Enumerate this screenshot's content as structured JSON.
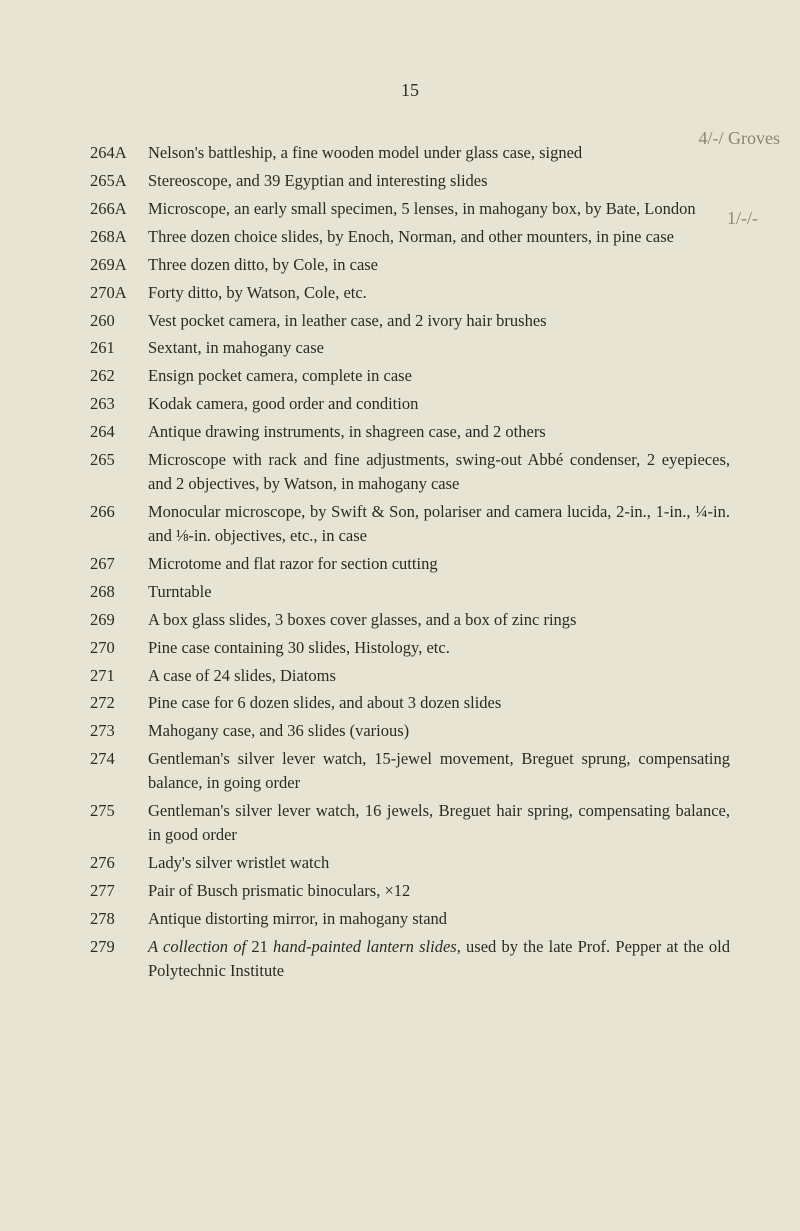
{
  "page_number": "15",
  "annotations": {
    "a1": "4/-/ Groves",
    "a2": "1/-/-"
  },
  "entries": [
    {
      "lot": "264A",
      "lines": [
        "Nelson's battleship, a fine wooden model under glass case, signed"
      ]
    },
    {
      "lot": "265A",
      "lines": [
        "Stereoscope, and 39 Egyptian and interesting slides"
      ]
    },
    {
      "lot": "266A",
      "lines": [
        "Microscope, an early small specimen, 5 lenses, in mahogany box, by Bate, London"
      ]
    },
    {
      "lot": "268A",
      "lines": [
        "Three dozen choice slides, by Enoch, Norman, and other mounters, in pine case"
      ]
    },
    {
      "lot": "269A",
      "lines": [
        "Three dozen ditto, by Cole, in case"
      ]
    },
    {
      "lot": "270A",
      "lines": [
        "Forty ditto, by Watson, Cole, etc."
      ]
    },
    {
      "lot": "260",
      "lines": [
        "Vest pocket camera, in leather case, and 2 ivory hair brushes"
      ]
    },
    {
      "lot": "261",
      "lines": [
        "Sextant, in mahogany case"
      ]
    },
    {
      "lot": "262",
      "lines": [
        "Ensign pocket camera, complete in case"
      ]
    },
    {
      "lot": "263",
      "lines": [
        "Kodak camera, good order and condition"
      ]
    },
    {
      "lot": "264",
      "lines": [
        "Antique drawing instruments, in shagreen case, and 2 others"
      ]
    },
    {
      "lot": "265",
      "lines": [
        "Microscope with rack and fine adjustments, swing-out Abbé condenser, 2 eyepieces, and 2 objectives, by Watson, in mahogany case"
      ]
    },
    {
      "lot": "266",
      "lines": [
        "Monocular microscope, by Swift & Son, polariser and camera lucida, 2-in., 1-in., ¼-in. and ⅛-in. objectives, etc., in case"
      ]
    },
    {
      "lot": "267",
      "lines": [
        "Microtome and flat razor for section cutting"
      ]
    },
    {
      "lot": "268",
      "lines": [
        "Turntable"
      ]
    },
    {
      "lot": "269",
      "lines": [
        "A box glass slides, 3 boxes cover glasses, and a box of zinc rings"
      ]
    },
    {
      "lot": "270",
      "lines": [
        "Pine case containing 30 slides, Histology, etc."
      ]
    },
    {
      "lot": "271",
      "lines": [
        "A case of 24 slides, Diatoms"
      ]
    },
    {
      "lot": "272",
      "lines": [
        "Pine case for 6 dozen slides, and about 3 dozen slides"
      ]
    },
    {
      "lot": "273",
      "lines": [
        "Mahogany case, and 36 slides (various)"
      ]
    },
    {
      "lot": "274",
      "lines": [
        "Gentleman's silver lever watch, 15-jewel movement, Breguet sprung, compensating balance, in going order"
      ]
    },
    {
      "lot": "275",
      "lines": [
        "Gentleman's silver lever watch, 16 jewels, Breguet hair spring, compensating balance, in good order"
      ]
    },
    {
      "lot": "276",
      "lines": [
        "Lady's silver wristlet watch"
      ]
    },
    {
      "lot": "277",
      "lines": [
        "Pair of Busch prismatic binoculars, ×12"
      ]
    },
    {
      "lot": "278",
      "lines": [
        "Antique distorting mirror, in mahogany stand"
      ]
    },
    {
      "lot": "279",
      "lines": [
        "<i>A collection of</i> 21 <i>hand-painted lantern slides</i>, used by the late Prof. Pepper at the old Polytechnic Institute"
      ]
    }
  ]
}
